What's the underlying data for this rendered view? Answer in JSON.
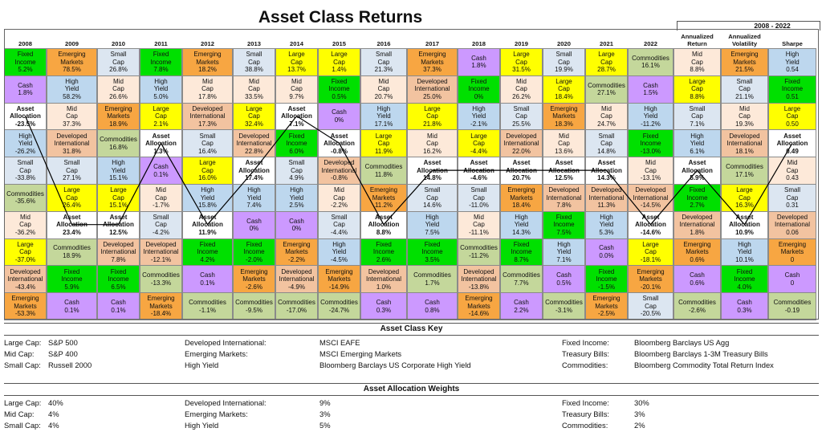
{
  "title": "Asset Class Returns",
  "right_header": "2008 - 2022",
  "colors": {
    "Large Cap": "#ffff00",
    "Mid Cap": "#fde9d9",
    "Small Cap": "#dce6f1",
    "Developed International": "#f2c3a0",
    "Emerging Markets": "#f7a642",
    "High Yield": "#bdd7ee",
    "Fixed Income": "#00e000",
    "Cash": "#cc99ff",
    "Commodities": "#c4d79b",
    "Asset Allocation": "#ffffff"
  },
  "chart_data": {
    "type": "table",
    "title": "Asset Class Returns",
    "columns": [
      "2008",
      "2009",
      "2010",
      "2011",
      "2012",
      "2013",
      "2014",
      "2015",
      "2016",
      "2017",
      "2018",
      "2019",
      "2020",
      "2021",
      "2022",
      "Annualized Return",
      "Annualized Volatility",
      "Sharpe"
    ],
    "rows": [
      [
        [
          "Fixed Income",
          "5.2%"
        ],
        [
          "Emerging Markets",
          "78.5%"
        ],
        [
          "Small Cap",
          "26.8%"
        ],
        [
          "Fixed Income",
          "7.8%"
        ],
        [
          "Emerging Markets",
          "18.2%"
        ],
        [
          "Small Cap",
          "38.8%"
        ],
        [
          "Large Cap",
          "13.7%"
        ],
        [
          "Large Cap",
          "1.4%"
        ],
        [
          "Small Cap",
          "21.3%"
        ],
        [
          "Emerging Markets",
          "37.3%"
        ],
        [
          "Cash",
          "1.8%"
        ],
        [
          "Large Cap",
          "31.5%"
        ],
        [
          "Small Cap",
          "19.9%"
        ],
        [
          "Large Cap",
          "28.7%"
        ],
        [
          "Commodities",
          "16.1%"
        ],
        [
          "Mid Cap",
          "8.8%"
        ],
        [
          "Emerging Markets",
          "21.5%"
        ],
        [
          "High Yield",
          "0.54"
        ]
      ],
      [
        [
          "Cash",
          "1.8%"
        ],
        [
          "High Yield",
          "58.2%"
        ],
        [
          "Mid Cap",
          "26.6%"
        ],
        [
          "High Yield",
          "5.0%"
        ],
        [
          "Mid Cap",
          "17.8%"
        ],
        [
          "Mid Cap",
          "33.5%"
        ],
        [
          "Mid Cap",
          "9.7%"
        ],
        [
          "Fixed Income",
          "0.5%"
        ],
        [
          "Mid Cap",
          "20.7%"
        ],
        [
          "Developed International",
          "25.0%"
        ],
        [
          "Fixed Income",
          "0%"
        ],
        [
          "Mid Cap",
          "26.2%"
        ],
        [
          "Large Cap",
          "18.4%"
        ],
        [
          "Commodities",
          "27.1%"
        ],
        [
          "Cash",
          "1.5%"
        ],
        [
          "Large Cap",
          "8.8%"
        ],
        [
          "Small Cap",
          "21.1%"
        ],
        [
          "Fixed Income",
          "0.51"
        ]
      ],
      [
        [
          "Asset Allocation",
          "-23.5%"
        ],
        [
          "Mid Cap",
          "37.3%"
        ],
        [
          "Emerging Markets",
          "18.9%"
        ],
        [
          "Large Cap",
          "2.1%"
        ],
        [
          "Developed International",
          "17.3%"
        ],
        [
          "Large Cap",
          "32.4%"
        ],
        [
          "Asset Allocation",
          "7.1%"
        ],
        [
          "Cash",
          "0%"
        ],
        [
          "High Yield",
          "17.1%"
        ],
        [
          "Large Cap",
          "21.8%"
        ],
        [
          "High Yield",
          "-2.1%"
        ],
        [
          "Small Cap",
          "25.5%"
        ],
        [
          "Emerging Markets",
          "18.3%"
        ],
        [
          "Mid Cap",
          "24.7%"
        ],
        [
          "High Yield",
          "-11.2%"
        ],
        [
          "Small Cap",
          "7.1%"
        ],
        [
          "Mid Cap",
          "19.3%"
        ],
        [
          "Large Cap",
          "0.50"
        ]
      ],
      [
        [
          "High Yield",
          "-26.2%"
        ],
        [
          "Developed International",
          "31.8%"
        ],
        [
          "Commodities",
          "16.8%"
        ],
        [
          "Asset Allocation",
          "1.3%"
        ],
        [
          "Small Cap",
          "16.4%"
        ],
        [
          "Developed International",
          "22.8%"
        ],
        [
          "Fixed Income",
          "6.0%"
        ],
        [
          "Asset Allocation",
          "-0.8%"
        ],
        [
          "Large Cap",
          "11.9%"
        ],
        [
          "Mid Cap",
          "16.2%"
        ],
        [
          "Large Cap",
          "-4.4%"
        ],
        [
          "Developed International",
          "22.0%"
        ],
        [
          "Mid Cap",
          "13.6%"
        ],
        [
          "Small Cap",
          "14.8%"
        ],
        [
          "Fixed Income",
          "-13.0%"
        ],
        [
          "High Yield",
          "6.1%"
        ],
        [
          "Developed International",
          "18.1%"
        ],
        [
          "Asset Allocation",
          "0.49"
        ]
      ],
      [
        [
          "Small Cap",
          "-33.8%"
        ],
        [
          "Small Cap",
          "27.1%"
        ],
        [
          "High Yield",
          "15.1%"
        ],
        [
          "Cash",
          "0.1%"
        ],
        [
          "Large Cap",
          "16.0%"
        ],
        [
          "Asset Allocation",
          "17.4%"
        ],
        [
          "Small Cap",
          "4.9%"
        ],
        [
          "Developed International",
          "-0.8%"
        ],
        [
          "Commodities",
          "11.8%"
        ],
        [
          "Asset Allocation",
          "14.8%"
        ],
        [
          "Asset Allocation",
          "-4.6%"
        ],
        [
          "Asset Allocation",
          "20.7%"
        ],
        [
          "Asset Allocation",
          "12.5%"
        ],
        [
          "Asset Allocation",
          "14.3%"
        ],
        [
          "Mid Cap",
          "-13.1%"
        ],
        [
          "Asset Allocation",
          "5.9%"
        ],
        [
          "Commodities",
          "17.1%"
        ],
        [
          "Mid Cap",
          "0.43"
        ]
      ],
      [
        [
          "Commodities",
          "-35.6%"
        ],
        [
          "Large Cap",
          "26.4%"
        ],
        [
          "Large Cap",
          "15.1%"
        ],
        [
          "Mid Cap",
          "-1.7%"
        ],
        [
          "High Yield",
          "15.8%"
        ],
        [
          "High Yield",
          "7.4%"
        ],
        [
          "High Yield",
          "2.5%"
        ],
        [
          "Mid Cap",
          "-2.2%"
        ],
        [
          "Emerging Markets",
          "11.2%"
        ],
        [
          "Small Cap",
          "14.6%"
        ],
        [
          "Small Cap",
          "-11.0%"
        ],
        [
          "Emerging Markets",
          "18.4%"
        ],
        [
          "Developed International",
          "7.8%"
        ],
        [
          "Developed International",
          "11.3%"
        ],
        [
          "Developed International",
          "-14.5%"
        ],
        [
          "Fixed Income",
          "2.7%"
        ],
        [
          "Large Cap",
          "16.3%"
        ],
        [
          "Small Cap",
          "0.31"
        ]
      ],
      [
        [
          "Mid Cap",
          "-36.2%"
        ],
        [
          "Asset Allocation",
          "23.4%"
        ],
        [
          "Asset Allocation",
          "12.5%"
        ],
        [
          "Small Cap",
          "-4.2%"
        ],
        [
          "Asset Allocation",
          "11.9%"
        ],
        [
          "Cash",
          "0%"
        ],
        [
          "Cash",
          "0%"
        ],
        [
          "Small Cap",
          "-4.4%"
        ],
        [
          "Asset Allocation",
          "8.8%"
        ],
        [
          "High Yield",
          "7.5%"
        ],
        [
          "Mid Cap",
          "-11.1%"
        ],
        [
          "High Yield",
          "14.3%"
        ],
        [
          "Fixed Income",
          "7.5%"
        ],
        [
          "High Yield",
          "5.3%"
        ],
        [
          "Asset Allocation",
          "-14.6%"
        ],
        [
          "Developed International",
          "1.8%"
        ],
        [
          "Asset Allocation",
          "10.9%"
        ],
        [
          "Developed International",
          "0.06"
        ]
      ],
      [
        [
          "Large Cap",
          "-37.0%"
        ],
        [
          "Commodities",
          "18.9%"
        ],
        [
          "Developed International",
          "7.8%"
        ],
        [
          "Developed International",
          "-12.1%"
        ],
        [
          "Fixed Income",
          "4.2%"
        ],
        [
          "Fixed Income",
          "-2.0%"
        ],
        [
          "Emerging Markets",
          "-2.2%"
        ],
        [
          "High Yield",
          "-4.5%"
        ],
        [
          "Fixed Income",
          "2.6%"
        ],
        [
          "Fixed Income",
          "3.5%"
        ],
        [
          "Commodities",
          "-11.2%"
        ],
        [
          "Fixed Income",
          "8.7%"
        ],
        [
          "High Yield",
          "7.1%"
        ],
        [
          "Cash",
          "0.0%"
        ],
        [
          "Large Cap",
          "-18.1%"
        ],
        [
          "Emerging Markets",
          "0.6%"
        ],
        [
          "High Yield",
          "10.1%"
        ],
        [
          "Emerging Markets",
          "0"
        ]
      ],
      [
        [
          "Developed International",
          "-43.4%"
        ],
        [
          "Fixed Income",
          "5.9%"
        ],
        [
          "Fixed Income",
          "6.5%"
        ],
        [
          "Commodities",
          "-13.3%"
        ],
        [
          "Cash",
          "0.1%"
        ],
        [
          "Emerging Markets",
          "-2.6%"
        ],
        [
          "Developed International",
          "-4.9%"
        ],
        [
          "Emerging Markets",
          "-14.9%"
        ],
        [
          "Developed International",
          "1.0%"
        ],
        [
          "Commodities",
          "1.7%"
        ],
        [
          "Developed International",
          "-13.8%"
        ],
        [
          "Commodities",
          "7.7%"
        ],
        [
          "Cash",
          "0.5%"
        ],
        [
          "Fixed Income",
          "-1.5%"
        ],
        [
          "Emerging Markets",
          "-20.1%"
        ],
        [
          "Cash",
          "0.6%"
        ],
        [
          "Fixed Income",
          "4.0%"
        ],
        [
          "Cash",
          "0"
        ]
      ],
      [
        [
          "Emerging Markets",
          "-53.3%"
        ],
        [
          "Cash",
          "0.1%"
        ],
        [
          "Cash",
          "0.1%"
        ],
        [
          "Emerging Markets",
          "-18.4%"
        ],
        [
          "Commodities",
          "-1.1%"
        ],
        [
          "Commodities",
          "-9.5%"
        ],
        [
          "Commodities",
          "-17.0%"
        ],
        [
          "Commodities",
          "-24.7%"
        ],
        [
          "Cash",
          "0.3%"
        ],
        [
          "Cash",
          "0.8%"
        ],
        [
          "Emerging Markets",
          "-14.6%"
        ],
        [
          "Cash",
          "2.2%"
        ],
        [
          "Commodities",
          "-3.1%"
        ],
        [
          "Emerging Markets",
          "-2.5%"
        ],
        [
          "Small Cap",
          "-20.5%"
        ],
        [
          "Commodities",
          "-2.6%"
        ],
        [
          "Cash",
          "0.3%"
        ],
        [
          "Commodities",
          "-0.19"
        ]
      ]
    ]
  },
  "key": {
    "title": "Asset Class Key",
    "rows": [
      [
        "Large Cap:",
        "S&P 500",
        "Developed International:",
        "MSCI EAFE",
        "Fixed Income:",
        "Bloomberg Barclays US Agg"
      ],
      [
        "Mid Cap:",
        "S&P 400",
        "Emerging Markets:",
        "MSCI Emerging Markets",
        "Treasury Bills:",
        "Bloomberg Barclays 1-3M Treasury Bills"
      ],
      [
        "Small Cap:",
        "Russell 2000",
        "High Yield",
        "Bloomberg Barclays US Corporate High Yield",
        "Commodities:",
        "Bloomberg Commodity Total Return Index"
      ]
    ]
  },
  "weights": {
    "title": "Asset Allocation Weights",
    "rows": [
      [
        "Large Cap:",
        "40%",
        "Developed International:",
        "9%",
        "Fixed Income:",
        "30%"
      ],
      [
        "Mid Cap:",
        "4%",
        "Emerging Markets:",
        "3%",
        "Treasury Bills:",
        "3%"
      ],
      [
        "Small Cap:",
        "4%",
        "High Yield",
        "5%",
        "Commodities:",
        "2%"
      ]
    ]
  }
}
